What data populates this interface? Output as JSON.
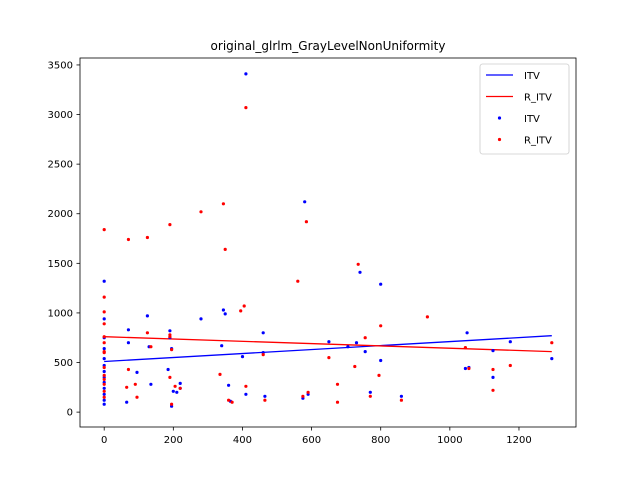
{
  "chart_data": {
    "type": "scatter",
    "title": "original_glrlm_GrayLevelNonUniformity",
    "xlabel": "",
    "ylabel": "",
    "xlim": [
      -70,
      1365
    ],
    "ylim": [
      -150,
      3570
    ],
    "x_ticks": [
      0,
      200,
      400,
      600,
      800,
      1000,
      1200
    ],
    "y_ticks": [
      0,
      500,
      1000,
      1500,
      2000,
      2500,
      3000,
      3500
    ],
    "grid": false,
    "legend_position": "top-right",
    "colors": {
      "ITV": "#0000ff",
      "R_ITV": "#ff0000"
    },
    "legend": [
      {
        "label": "ITV",
        "kind": "line",
        "color": "#0000ff"
      },
      {
        "label": "R_ITV",
        "kind": "line",
        "color": "#ff0000"
      },
      {
        "label": "ITV",
        "kind": "marker",
        "color": "#0000ff"
      },
      {
        "label": "R_ITV",
        "kind": "marker",
        "color": "#ff0000"
      }
    ],
    "lines": [
      {
        "name": "ITV",
        "color": "#0000ff",
        "x": [
          0,
          1295
        ],
        "y": [
          510,
          770
        ]
      },
      {
        "name": "R_ITV",
        "color": "#ff0000",
        "x": [
          0,
          1295
        ],
        "y": [
          760,
          610
        ]
      }
    ],
    "series": [
      {
        "name": "ITV",
        "color": "#0000ff",
        "points": [
          [
            0,
            1320
          ],
          [
            0,
            940
          ],
          [
            0,
            750
          ],
          [
            0,
            640
          ],
          [
            0,
            540
          ],
          [
            0,
            470
          ],
          [
            0,
            410
          ],
          [
            0,
            350
          ],
          [
            0,
            300
          ],
          [
            0,
            240
          ],
          [
            0,
            180
          ],
          [
            0,
            120
          ],
          [
            0,
            80
          ],
          [
            65,
            100
          ],
          [
            70,
            830
          ],
          [
            70,
            700
          ],
          [
            95,
            400
          ],
          [
            125,
            970
          ],
          [
            130,
            660
          ],
          [
            135,
            280
          ],
          [
            185,
            430
          ],
          [
            190,
            820
          ],
          [
            190,
            750
          ],
          [
            195,
            640
          ],
          [
            195,
            60
          ],
          [
            200,
            210
          ],
          [
            210,
            200
          ],
          [
            220,
            290
          ],
          [
            220,
            240
          ],
          [
            280,
            940
          ],
          [
            340,
            670
          ],
          [
            345,
            1030
          ],
          [
            350,
            990
          ],
          [
            360,
            270
          ],
          [
            365,
            110
          ],
          [
            400,
            560
          ],
          [
            410,
            3410
          ],
          [
            410,
            180
          ],
          [
            460,
            800
          ],
          [
            460,
            600
          ],
          [
            465,
            160
          ],
          [
            575,
            140
          ],
          [
            580,
            2120
          ],
          [
            590,
            180
          ],
          [
            650,
            710
          ],
          [
            705,
            660
          ],
          [
            730,
            700
          ],
          [
            740,
            1410
          ],
          [
            755,
            610
          ],
          [
            770,
            200
          ],
          [
            800,
            1290
          ],
          [
            800,
            520
          ],
          [
            860,
            160
          ],
          [
            1045,
            440
          ],
          [
            1050,
            800
          ],
          [
            1055,
            450
          ],
          [
            1125,
            350
          ],
          [
            1125,
            620
          ],
          [
            1175,
            710
          ],
          [
            1295,
            540
          ]
        ]
      },
      {
        "name": "R_ITV",
        "color": "#ff0000",
        "points": [
          [
            0,
            1840
          ],
          [
            0,
            1160
          ],
          [
            0,
            1010
          ],
          [
            0,
            890
          ],
          [
            0,
            760
          ],
          [
            0,
            700
          ],
          [
            0,
            610
          ],
          [
            0,
            600
          ],
          [
            0,
            450
          ],
          [
            0,
            370
          ],
          [
            0,
            330
          ],
          [
            0,
            280
          ],
          [
            0,
            210
          ],
          [
            0,
            150
          ],
          [
            65,
            250
          ],
          [
            70,
            1740
          ],
          [
            70,
            430
          ],
          [
            90,
            280
          ],
          [
            95,
            150
          ],
          [
            125,
            1760
          ],
          [
            125,
            800
          ],
          [
            135,
            660
          ],
          [
            190,
            1890
          ],
          [
            190,
            780
          ],
          [
            190,
            760
          ],
          [
            190,
            350
          ],
          [
            195,
            80
          ],
          [
            195,
            630
          ],
          [
            205,
            260
          ],
          [
            220,
            240
          ],
          [
            280,
            2020
          ],
          [
            335,
            380
          ],
          [
            345,
            2100
          ],
          [
            350,
            1640
          ],
          [
            360,
            120
          ],
          [
            370,
            100
          ],
          [
            395,
            1020
          ],
          [
            405,
            1070
          ],
          [
            410,
            3070
          ],
          [
            410,
            260
          ],
          [
            460,
            580
          ],
          [
            465,
            120
          ],
          [
            560,
            1320
          ],
          [
            575,
            160
          ],
          [
            585,
            1920
          ],
          [
            590,
            200
          ],
          [
            650,
            550
          ],
          [
            675,
            280
          ],
          [
            675,
            100
          ],
          [
            725,
            460
          ],
          [
            735,
            1490
          ],
          [
            755,
            750
          ],
          [
            770,
            160
          ],
          [
            795,
            370
          ],
          [
            800,
            870
          ],
          [
            860,
            120
          ],
          [
            935,
            960
          ],
          [
            1045,
            650
          ],
          [
            1055,
            440
          ],
          [
            1125,
            430
          ],
          [
            1125,
            220
          ],
          [
            1175,
            470
          ],
          [
            1295,
            700
          ]
        ]
      }
    ]
  }
}
